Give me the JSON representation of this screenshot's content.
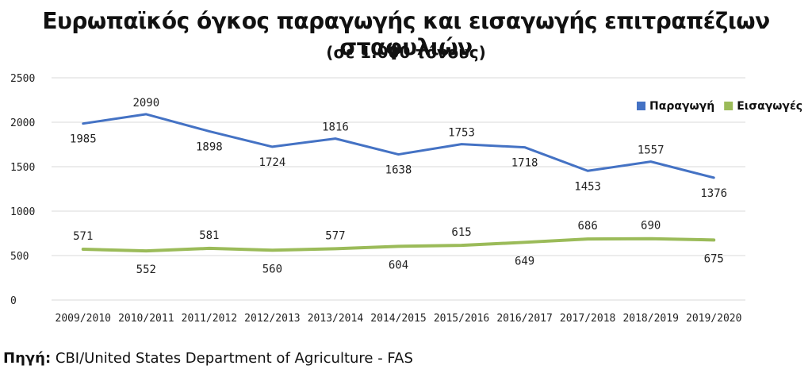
{
  "title": "Ευρωπαϊκός όγκος παραγωγής και εισαγωγής επιτραπέζιων σταφυλιών",
  "subtitle": "(σε 1.000 τόνους)",
  "source": {
    "label": "Πηγή:",
    "text": "CBI/United States Department of Agriculture - FAS"
  },
  "chart_data": {
    "type": "line",
    "categories": [
      "2009/2010",
      "2010/2011",
      "2011/2012",
      "2012/2013",
      "2013/2014",
      "2014/2015",
      "2015/2016",
      "2016/2017",
      "2017/2018",
      "2018/2019",
      "2019/2020"
    ],
    "ylim": [
      0,
      2500
    ],
    "yticks": [
      0,
      500,
      1000,
      1500,
      2000,
      2500
    ],
    "grid": true,
    "legend_position": "top-right",
    "series": [
      {
        "name": "Παραγωγή",
        "color": "#4472c4",
        "values": [
          1985,
          2090,
          1898,
          1724,
          1816,
          1638,
          1753,
          1718,
          1453,
          1557,
          1376
        ]
      },
      {
        "name": "Εισαγωγές",
        "color": "#9bbb59",
        "values": [
          571,
          552,
          581,
          560,
          577,
          604,
          615,
          649,
          686,
          690,
          675
        ]
      }
    ]
  }
}
